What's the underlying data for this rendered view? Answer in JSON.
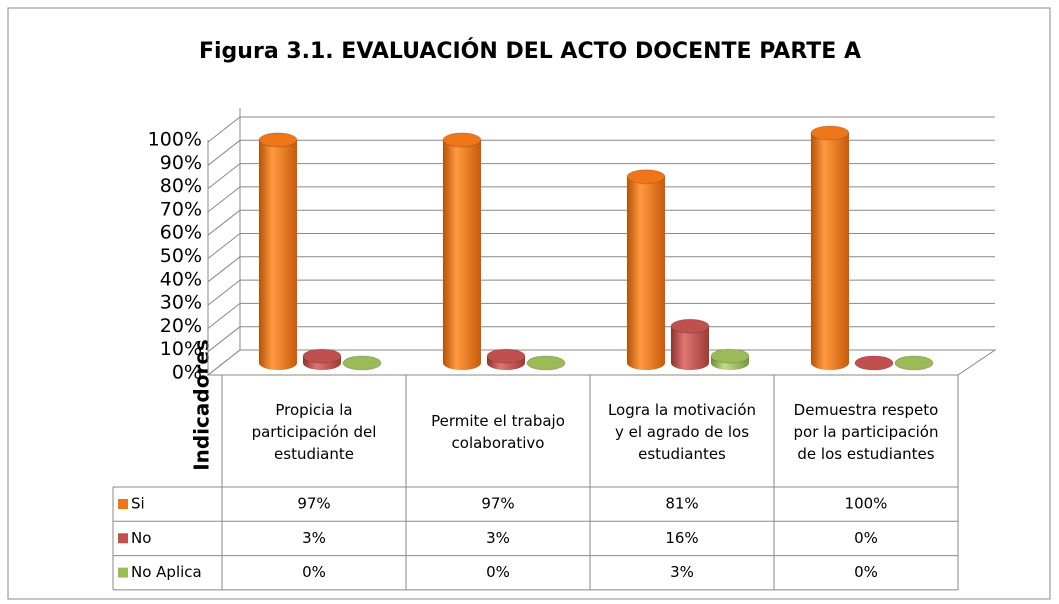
{
  "chart_data": {
    "type": "bar",
    "title": "Figura 3.1. EVALUACIÓN DEL ACTO DOCENTE PARTE A",
    "y_label": "Indicadores",
    "categories": [
      "Propicia la participación del estudiante",
      "Permite el trabajo colaborativo",
      "Logra la motivación y el agrado de los estudiantes",
      "Demuestra respeto por la participación de los estudiantes"
    ],
    "series": [
      {
        "name": "Si",
        "color": "#ee7518",
        "values": [
          97,
          97,
          81,
          100
        ],
        "value_labels": [
          "97%",
          "97%",
          "81%",
          "100%"
        ]
      },
      {
        "name": "No",
        "color": "#c0504d",
        "values": [
          3,
          3,
          16,
          0
        ],
        "value_labels": [
          "3%",
          "3%",
          "16%",
          "0%"
        ]
      },
      {
        "name": "No Aplica",
        "color": "#9bbb59",
        "values": [
          0,
          0,
          3,
          0
        ],
        "value_labels": [
          "0%",
          "0%",
          "3%",
          "0%"
        ]
      }
    ],
    "ylim": [
      0,
      100
    ],
    "yticks": [
      {
        "value": 0,
        "label": "0%"
      },
      {
        "value": 10,
        "label": "10%"
      },
      {
        "value": 20,
        "label": "20%"
      },
      {
        "value": 30,
        "label": "30%"
      },
      {
        "value": 40,
        "label": "40%"
      },
      {
        "value": 50,
        "label": "50%"
      },
      {
        "value": 60,
        "label": "60%"
      },
      {
        "value": 70,
        "label": "70%"
      },
      {
        "value": 80,
        "label": "80%"
      },
      {
        "value": 90,
        "label": "90%"
      },
      {
        "value": 100,
        "label": "100%"
      }
    ],
    "grid": true
  }
}
